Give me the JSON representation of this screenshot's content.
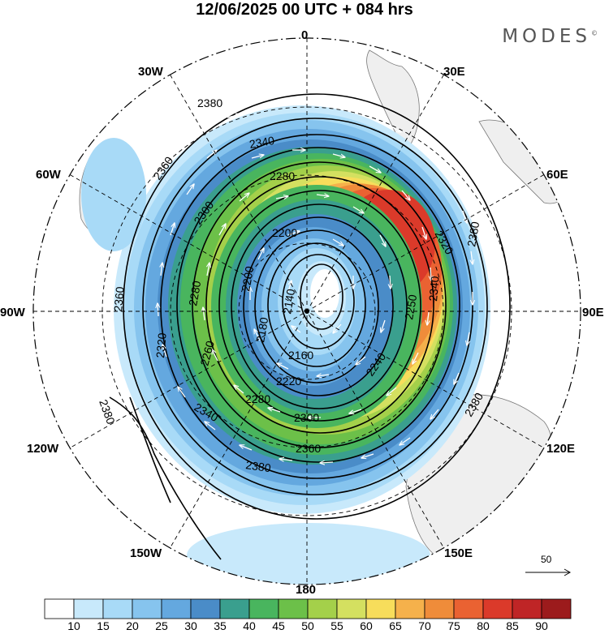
{
  "header": {
    "title": "12/06/2025  00 UTC  + 084 hrs",
    "brand": "MODES",
    "brand_mark": "©"
  },
  "map": {
    "projection": "south-polar-stereographic",
    "longitude_labels": {
      "top": "0",
      "upper_right": "30E",
      "right_upper": "60E",
      "right": "90E",
      "right_lower": "120E",
      "lower_right": "150E",
      "bottom": "180",
      "lower_left": "150W",
      "left_lower": "120W",
      "left": "90W",
      "left_upper": "60W",
      "upper_left": "30W"
    },
    "contours": {
      "units": "geopotential height (dam)",
      "labels": [
        {
          "text": "2380",
          "pos": "top"
        },
        {
          "text": "2380",
          "pos": "right-upper"
        },
        {
          "text": "2380",
          "pos": "right-lower"
        },
        {
          "text": "2380",
          "pos": "bottom"
        },
        {
          "text": "2380",
          "pos": "left-lower"
        },
        {
          "text": "2360",
          "pos": "left"
        },
        {
          "text": "2360",
          "pos": "upper-left"
        },
        {
          "text": "2360",
          "pos": "bottom"
        },
        {
          "text": "2340",
          "pos": "top"
        },
        {
          "text": "2340",
          "pos": "right"
        },
        {
          "text": "2340",
          "pos": "lower-left"
        },
        {
          "text": "2320",
          "pos": "right"
        },
        {
          "text": "2320",
          "pos": "left"
        },
        {
          "text": "2300",
          "pos": "upper-left"
        },
        {
          "text": "2300",
          "pos": "bottom"
        },
        {
          "text": "2280",
          "pos": "top"
        },
        {
          "text": "2280",
          "pos": "left"
        },
        {
          "text": "2280",
          "pos": "bottom"
        },
        {
          "text": "2260",
          "pos": "left"
        },
        {
          "text": "2250",
          "pos": "right"
        },
        {
          "text": "2240",
          "pos": "lower-right"
        },
        {
          "text": "2220",
          "pos": "bottom"
        },
        {
          "text": "2200",
          "pos": "top"
        },
        {
          "text": "2200",
          "pos": "left"
        },
        {
          "text": "2180",
          "pos": "center-left"
        },
        {
          "text": "2160",
          "pos": "center-bottom"
        },
        {
          "text": "2140",
          "pos": "center"
        }
      ]
    }
  },
  "reference_vector": {
    "label": "50"
  },
  "colorbar": {
    "colors": [
      "#ffffff",
      "#c8e9fb",
      "#a8daf7",
      "#86c4ee",
      "#64a8df",
      "#4a8cc8",
      "#3a9f8e",
      "#49b55e",
      "#6cc049",
      "#a4d04a",
      "#d4e060",
      "#f7dd5b",
      "#f5b14b",
      "#ef8c3a",
      "#ea6232",
      "#db3a2a",
      "#bf2526",
      "#9c1b1c"
    ],
    "labels": [
      "10",
      "15",
      "20",
      "25",
      "30",
      "35",
      "40",
      "45",
      "50",
      "55",
      "60",
      "65",
      "70",
      "75",
      "80",
      "85",
      "90"
    ]
  }
}
